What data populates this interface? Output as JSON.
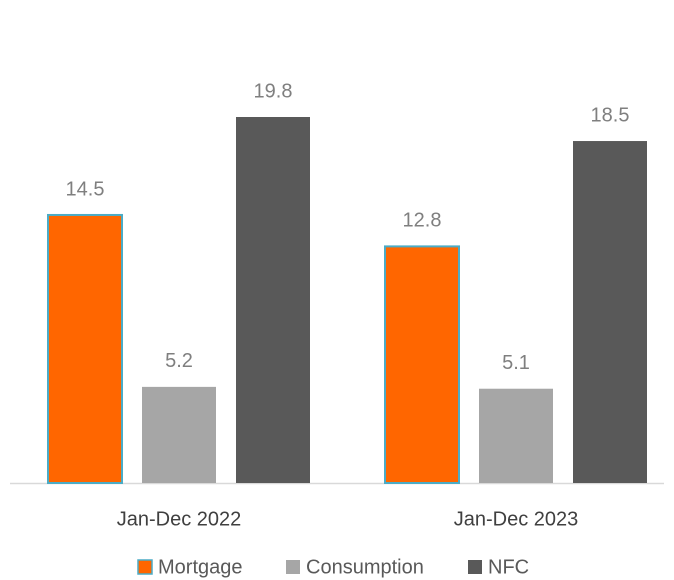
{
  "chart_data": {
    "type": "bar",
    "categories": [
      "Jan-Dec 2022",
      "Jan-Dec 2023"
    ],
    "series": [
      {
        "name": "Mortgage",
        "color": "#ff6600",
        "edgecolor": "#4bacc6",
        "values": [
          14.5,
          12.8
        ]
      },
      {
        "name": "Consumption",
        "color": "#a6a6a6",
        "values": [
          5.2,
          5.1
        ]
      },
      {
        "name": "NFC",
        "color": "#595959",
        "values": [
          19.8,
          18.5
        ]
      }
    ],
    "legend": "bottom"
  }
}
